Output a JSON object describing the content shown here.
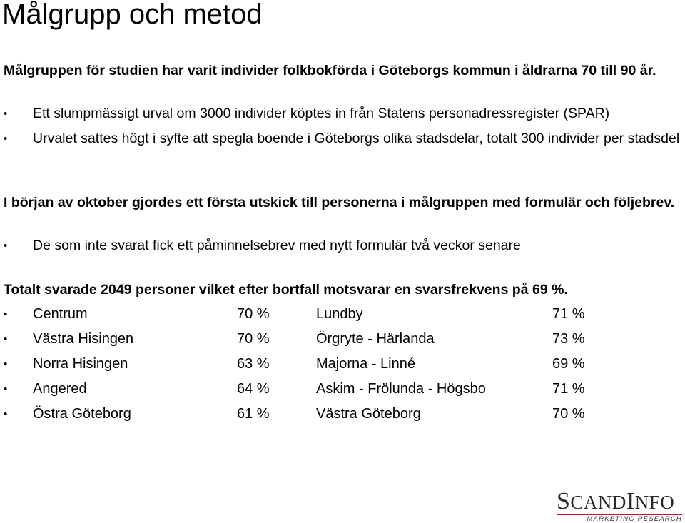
{
  "title": "Målgrupp och metod",
  "section1": {
    "heading": "Målgruppen för studien har varit individer folkbokförda i Göteborgs kommun i åldrarna 70 till 90 år.",
    "bullets": [
      "Ett slumpmässigt urval om 3000 individer köptes in från Statens personadressregister (SPAR)",
      "Urvalet sattes högt i syfte att  spegla boende i Göteborgs olika stadsdelar,  totalt 300 individer per stadsdel"
    ]
  },
  "section2": {
    "heading": "I början av oktober gjordes ett första utskick till personerna i målgruppen med formulär och följebrev.",
    "bullets": [
      "De som inte svarat fick ett påminnelsebrev med nytt formulär två veckor senare"
    ]
  },
  "section3": {
    "heading": "Totalt svarade 2049 personer vilket efter bortfall motsvarar en svarsfrekvens på 69 %.",
    "rows": [
      {
        "district_a": "Centrum",
        "rate_a": "70 %",
        "district_b": "Lundby",
        "rate_b": "71 %"
      },
      {
        "district_a": "Västra Hisingen",
        "rate_a": "70 %",
        "district_b": "Örgryte - Härlanda",
        "rate_b": "73 %"
      },
      {
        "district_a": "Norra Hisingen",
        "rate_a": "63 %",
        "district_b": "Majorna - Linné",
        "rate_b": "69 %"
      },
      {
        "district_a": "Angered",
        "rate_a": "64 %",
        "district_b": "Askim - Frölunda - Högsbo",
        "rate_b": "71 %"
      },
      {
        "district_a": "Östra Göteborg",
        "rate_a": "61 %",
        "district_b": "Västra Göteborg",
        "rate_b": "70 %"
      }
    ]
  },
  "bullet_symbol": "•",
  "logo": {
    "text": "ScandInfo",
    "tagline": "MARKETING RESEARCH",
    "accent_color": "#c8102e"
  }
}
